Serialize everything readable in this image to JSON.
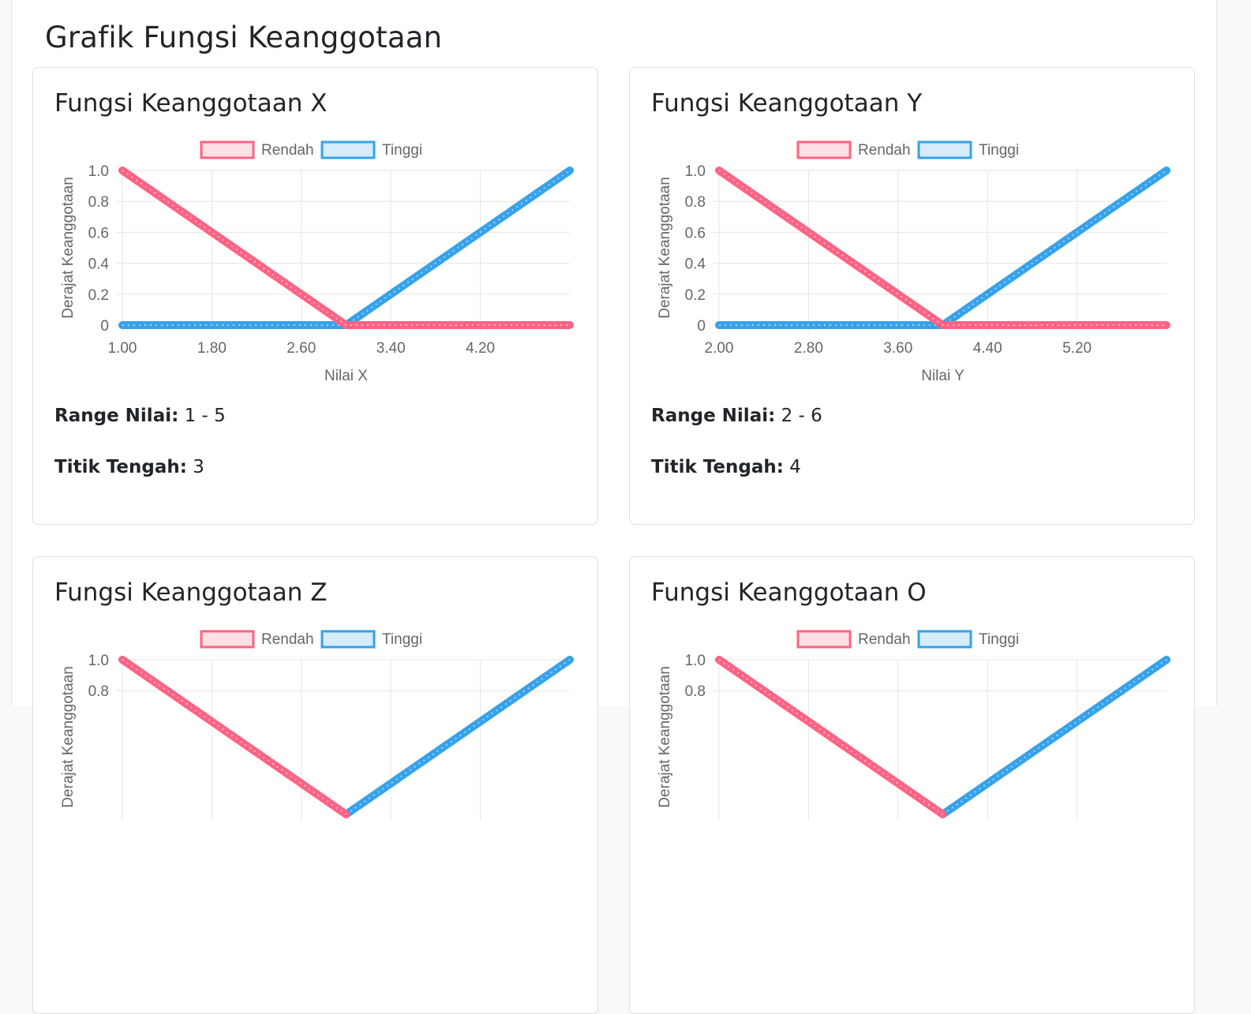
{
  "page": {
    "title": "Grafik Fungsi Keanggotaan"
  },
  "cards": [
    {
      "title": "Fungsi Keanggotaan X",
      "range_label": "Range Nilai:",
      "range_value": "1 - 5",
      "mid_label": "Titik Tengah:",
      "mid_value": "3",
      "chart_data": {
        "type": "line",
        "xlabel": "Nilai X",
        "ylabel": "Derajat Keanggotaan",
        "xlim": [
          1,
          5
        ],
        "ylim": [
          0,
          1
        ],
        "x_ticks": [
          "1.00",
          "1.80",
          "2.60",
          "3.40",
          "4.20"
        ],
        "y_ticks": [
          "0",
          "0.2",
          "0.4",
          "0.6",
          "0.8",
          "1.0"
        ],
        "legend_position": "top",
        "series": [
          {
            "name": "Rendah",
            "color": "#ff6384",
            "points": [
              [
                1,
                1
              ],
              [
                3,
                0
              ],
              [
                5,
                0
              ]
            ]
          },
          {
            "name": "Tinggi",
            "color": "#36a2eb",
            "points": [
              [
                1,
                0
              ],
              [
                3,
                0
              ],
              [
                5,
                1
              ]
            ]
          }
        ]
      }
    },
    {
      "title": "Fungsi Keanggotaan Y",
      "range_label": "Range Nilai:",
      "range_value": "2 - 6",
      "mid_label": "Titik Tengah:",
      "mid_value": "4",
      "chart_data": {
        "type": "line",
        "xlabel": "Nilai Y",
        "ylabel": "Derajat Keanggotaan",
        "xlim": [
          2,
          6
        ],
        "ylim": [
          0,
          1
        ],
        "x_ticks": [
          "2.00",
          "2.80",
          "3.60",
          "4.40",
          "5.20"
        ],
        "y_ticks": [
          "0",
          "0.2",
          "0.4",
          "0.6",
          "0.8",
          "1.0"
        ],
        "legend_position": "top",
        "series": [
          {
            "name": "Rendah",
            "color": "#ff6384",
            "points": [
              [
                2,
                1
              ],
              [
                4,
                0
              ],
              [
                6,
                0
              ]
            ]
          },
          {
            "name": "Tinggi",
            "color": "#36a2eb",
            "points": [
              [
                2,
                0
              ],
              [
                4,
                0
              ],
              [
                6,
                1
              ]
            ]
          }
        ]
      }
    },
    {
      "title": "Fungsi Keanggotaan Z",
      "chart_data": {
        "type": "line",
        "ylabel": "Derajat Keanggotaan",
        "ylim": [
          0,
          1
        ],
        "y_ticks": [
          "1.0",
          "0.8"
        ],
        "legend_position": "top",
        "series": [
          {
            "name": "Rendah",
            "color": "#ff6384"
          },
          {
            "name": "Tinggi",
            "color": "#36a2eb"
          }
        ]
      }
    },
    {
      "title": "Fungsi Keanggotaan O",
      "chart_data": {
        "type": "line",
        "ylabel": "Derajat Keanggotaan",
        "ylim": [
          0,
          1
        ],
        "y_ticks": [
          "1.0",
          "0.8"
        ],
        "legend_position": "top",
        "series": [
          {
            "name": "Rendah",
            "color": "#ff6384"
          },
          {
            "name": "Tinggi",
            "color": "#36a2eb"
          }
        ]
      }
    }
  ]
}
